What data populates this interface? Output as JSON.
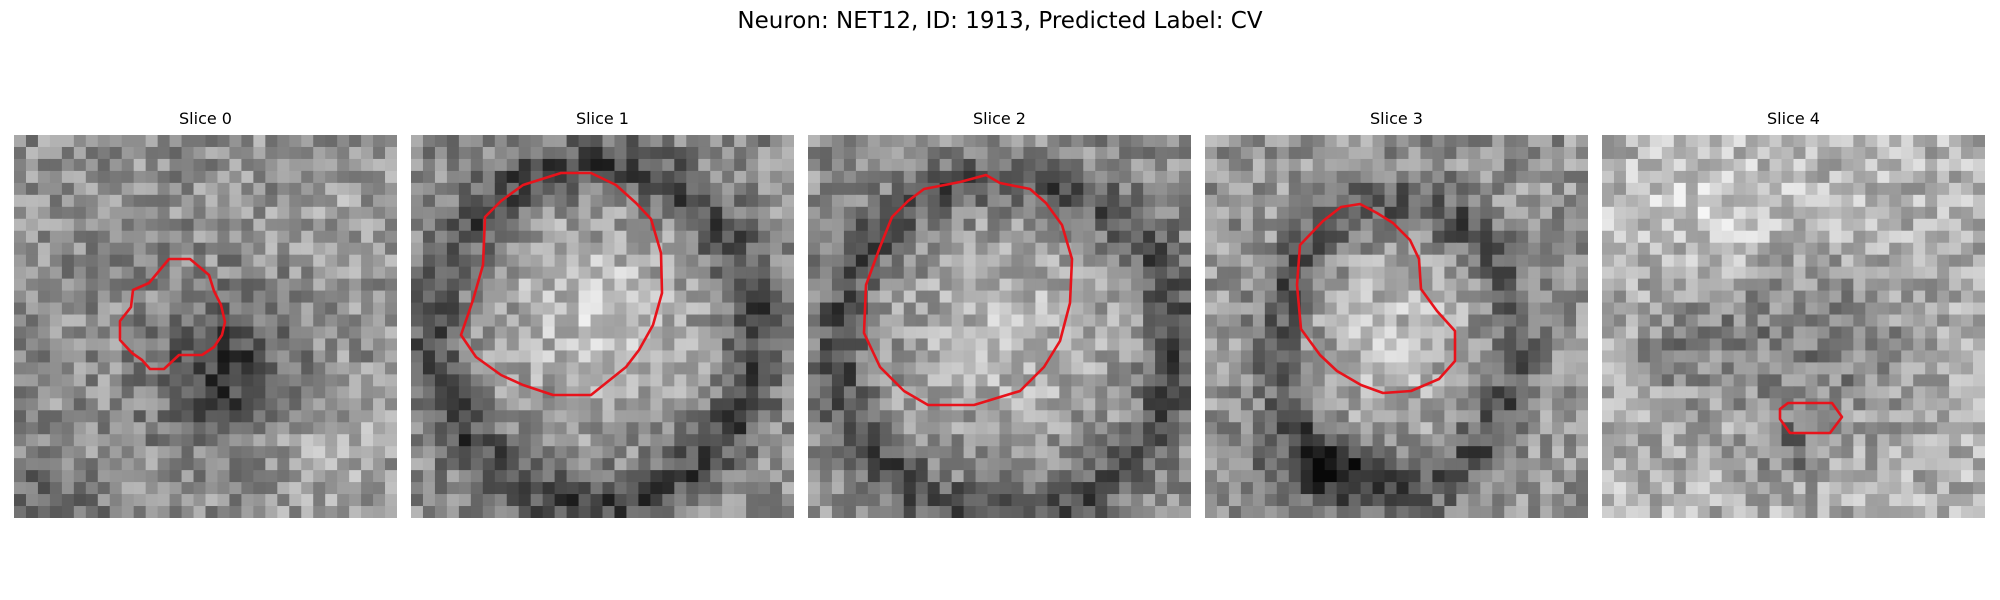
{
  "title": "Neuron: NET12, ID: 1913, Predicted Label: CV",
  "colors": {
    "contour": "#e8131b",
    "background": "#ffffff"
  },
  "panels": [
    {
      "title": "Slice 0",
      "image_kind": "grayscale-microscopy-patch",
      "center_tone": "dark",
      "contour_present": true
    },
    {
      "title": "Slice 1",
      "image_kind": "grayscale-microscopy-patch",
      "center_tone": "light",
      "contour_present": true
    },
    {
      "title": "Slice 2",
      "image_kind": "grayscale-microscopy-patch",
      "center_tone": "light",
      "contour_present": true
    },
    {
      "title": "Slice 3",
      "image_kind": "grayscale-microscopy-patch",
      "center_tone": "light",
      "contour_present": true
    },
    {
      "title": "Slice 4",
      "image_kind": "grayscale-microscopy-patch",
      "center_tone": "dark",
      "contour_present": true
    }
  ]
}
